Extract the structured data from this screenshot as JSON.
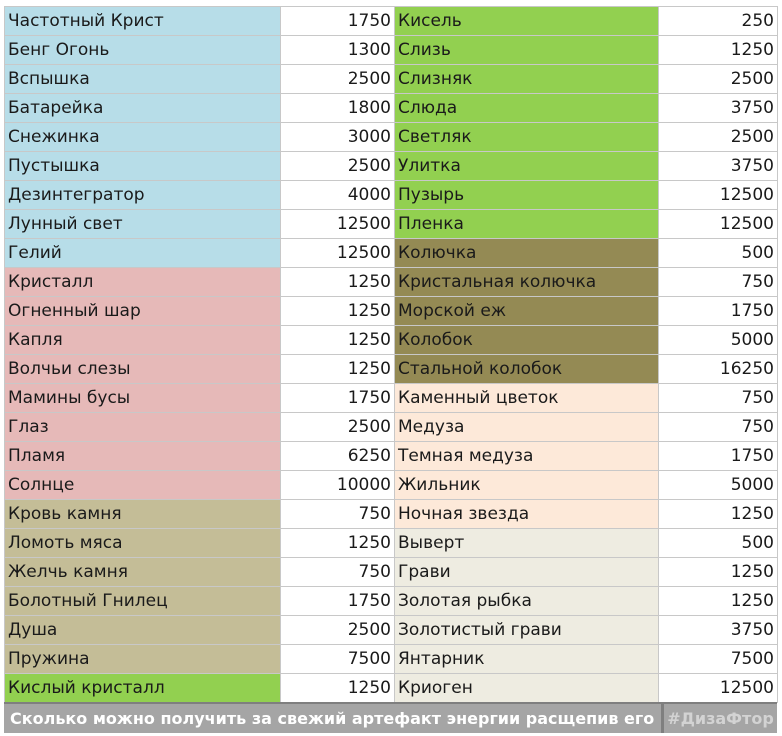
{
  "colors": {
    "blue": "#b7dde8",
    "pink": "#e6b9b8",
    "tan": "#c4bd97",
    "green": "#92d050",
    "olive": "#948a54",
    "peach": "#fde9d9",
    "beige": "#eeece1",
    "footer_bg": "#a5a5a5"
  },
  "rows": [
    {
      "left": {
        "name": "Частотный Крист",
        "value": "1750",
        "color": "blue"
      },
      "right": {
        "name": "Кисель",
        "value": "250",
        "color": "green"
      }
    },
    {
      "left": {
        "name": "Бенг Огонь",
        "value": "1300",
        "color": "blue"
      },
      "right": {
        "name": "Слизь",
        "value": "1250",
        "color": "green"
      }
    },
    {
      "left": {
        "name": "Вспышка",
        "value": "2500",
        "color": "blue"
      },
      "right": {
        "name": "Слизняк",
        "value": "2500",
        "color": "green"
      }
    },
    {
      "left": {
        "name": "Батарейка",
        "value": "1800",
        "color": "blue"
      },
      "right": {
        "name": "Слюда",
        "value": "3750",
        "color": "green"
      }
    },
    {
      "left": {
        "name": "Снежинка",
        "value": "3000",
        "color": "blue"
      },
      "right": {
        "name": "Светляк",
        "value": "2500",
        "color": "green"
      }
    },
    {
      "left": {
        "name": "Пустышка",
        "value": "2500",
        "color": "blue"
      },
      "right": {
        "name": "Улитка",
        "value": "3750",
        "color": "green"
      }
    },
    {
      "left": {
        "name": "Дезинтегратор",
        "value": "4000",
        "color": "blue"
      },
      "right": {
        "name": "Пузырь",
        "value": "12500",
        "color": "green"
      }
    },
    {
      "left": {
        "name": "Лунный свет",
        "value": "12500",
        "color": "blue"
      },
      "right": {
        "name": "Пленка",
        "value": "12500",
        "color": "green"
      }
    },
    {
      "left": {
        "name": "Гелий",
        "value": "12500",
        "color": "blue"
      },
      "right": {
        "name": "Колючка",
        "value": "500",
        "color": "olive"
      }
    },
    {
      "left": {
        "name": "Кристалл",
        "value": "1250",
        "color": "pink"
      },
      "right": {
        "name": "Кристальная колючка",
        "value": "750",
        "color": "olive"
      }
    },
    {
      "left": {
        "name": "Огненный шар",
        "value": "1250",
        "color": "pink"
      },
      "right": {
        "name": "Морской еж",
        "value": "1750",
        "color": "olive"
      }
    },
    {
      "left": {
        "name": "Капля",
        "value": "1250",
        "color": "pink"
      },
      "right": {
        "name": "Колобок",
        "value": "5000",
        "color": "olive"
      }
    },
    {
      "left": {
        "name": "Волчьи слезы",
        "value": "1250",
        "color": "pink"
      },
      "right": {
        "name": "Стальной колобок",
        "value": "16250",
        "color": "olive"
      }
    },
    {
      "left": {
        "name": "Мамины бусы",
        "value": "1750",
        "color": "pink"
      },
      "right": {
        "name": "Каменный цветок",
        "value": "750",
        "color": "peach"
      }
    },
    {
      "left": {
        "name": "Глаз",
        "value": "2500",
        "color": "pink"
      },
      "right": {
        "name": "Медуза",
        "value": "750",
        "color": "peach"
      }
    },
    {
      "left": {
        "name": "Пламя",
        "value": "6250",
        "color": "pink"
      },
      "right": {
        "name": "Темная медуза",
        "value": "1750",
        "color": "peach"
      }
    },
    {
      "left": {
        "name": "Солнце",
        "value": "10000",
        "color": "pink"
      },
      "right": {
        "name": "Жильник",
        "value": "5000",
        "color": "peach"
      }
    },
    {
      "left": {
        "name": "Кровь камня",
        "value": "750",
        "color": "tan"
      },
      "right": {
        "name": "Ночная звезда",
        "value": "1250",
        "color": "peach"
      }
    },
    {
      "left": {
        "name": "Ломоть мяса",
        "value": "1250",
        "color": "tan"
      },
      "right": {
        "name": "Выверт",
        "value": "500",
        "color": "beige"
      }
    },
    {
      "left": {
        "name": "Желчь камня",
        "value": "750",
        "color": "tan"
      },
      "right": {
        "name": "Грави",
        "value": "1250",
        "color": "beige"
      }
    },
    {
      "left": {
        "name": "Болотный Гнилец",
        "value": "1750",
        "color": "tan"
      },
      "right": {
        "name": "Золотая рыбка",
        "value": "1250",
        "color": "beige"
      }
    },
    {
      "left": {
        "name": "Душа",
        "value": "2500",
        "color": "tan"
      },
      "right": {
        "name": "Золотистый грави",
        "value": "3750",
        "color": "beige"
      }
    },
    {
      "left": {
        "name": "Пружина",
        "value": "7500",
        "color": "tan"
      },
      "right": {
        "name": "Янтарник",
        "value": "7500",
        "color": "beige"
      }
    },
    {
      "left": {
        "name": "Кислый кристалл",
        "value": "1250",
        "color": "green"
      },
      "right": {
        "name": "Криоген",
        "value": "12500",
        "color": "beige"
      }
    }
  ],
  "footer": {
    "caption": "Сколько можно получить за свежий артефакт энергии расщепив его",
    "tag": "#ДизаФтор"
  }
}
